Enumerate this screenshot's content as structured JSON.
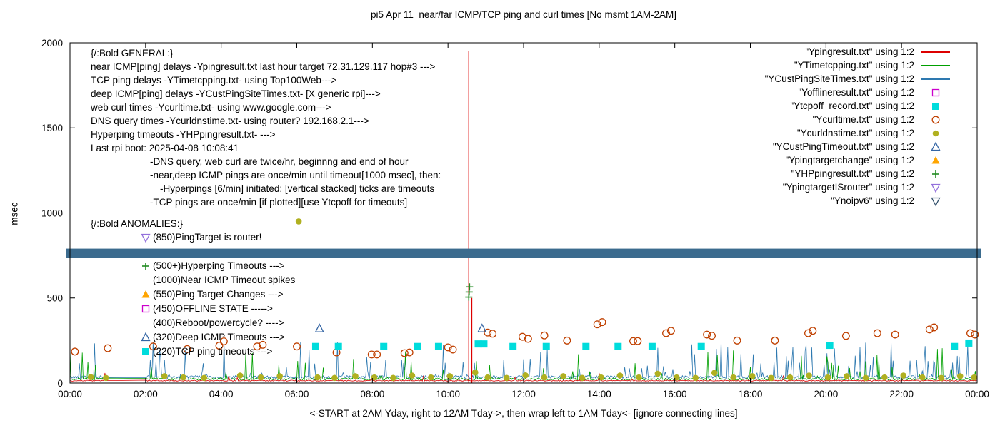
{
  "chart_data": {
    "type": "line",
    "title": "pi5 Apr 11  near/far ICMP/TCP ping and curl times [No msmt 1AM-2AM]",
    "xlabel": "<-START at 2AM Yday, right to 12AM Tday->, then wrap left to 1AM Tday<- [ignore connecting lines]",
    "ylabel": "msec",
    "xlim_hours": [
      0,
      24
    ],
    "ylim": [
      0,
      2000
    ],
    "x_ticks": [
      "00:00",
      "02:00",
      "04:00",
      "06:00",
      "08:00",
      "10:00",
      "12:00",
      "14:00",
      "16:00",
      "18:00",
      "20:00",
      "22:00",
      "00:00"
    ],
    "y_ticks": [
      0,
      500,
      1000,
      1500,
      2000
    ],
    "grid": false,
    "legend_position": "top-right",
    "gap_hours": [
      1,
      2
    ],
    "legend": [
      {
        "key": "Ypingresult",
        "label": "\"Ypingresult.txt\" using 1:2",
        "marker": "line",
        "color": "#dd0000"
      },
      {
        "key": "YTimetcpping",
        "label": "\"YTimetcpping.txt\" using 1:2",
        "marker": "line",
        "color": "#00a000"
      },
      {
        "key": "YCustPingSiteTimes",
        "label": "\"YCustPingSiteTimes.txt\" using 1:2",
        "marker": "line",
        "color": "#2e79b0"
      },
      {
        "key": "Yofflineresult",
        "label": "\"Yofflineresult.txt\" using 1:2",
        "marker": "square-open",
        "color": "#cc00cc"
      },
      {
        "key": "Ytcpoff_record",
        "label": "\"Ytcpoff_record.txt\" using 1:2",
        "marker": "square-filled",
        "color": "#00dcdc"
      },
      {
        "key": "Ycurltime",
        "label": "\"Ycurltime.txt\" using 1:2",
        "marker": "circle-open",
        "color": "#c04000"
      },
      {
        "key": "Ycurldnstime",
        "label": "\"Ycurldnstime.txt\" using 1:2",
        "marker": "circle-filled",
        "color": "#b0b020"
      },
      {
        "key": "YCustPingTimeout",
        "label": "\"YCustPingTimeout.txt\" using 1:2",
        "marker": "triangle-up-open",
        "color": "#3465a4"
      },
      {
        "key": "Ypingtargetchange",
        "label": "\"Ypingtargetchange\" using 1:2",
        "marker": "triangle-up-filled",
        "color": "#ffa500"
      },
      {
        "key": "YHPpingresult",
        "label": "\"YHPpingresult.txt\" using 1:2",
        "marker": "plus",
        "color": "#228b22"
      },
      {
        "key": "YpingtargetISrouter",
        "label": "\"YpingtargetISrouter\" using 1:2",
        "marker": "triangle-down-open",
        "color": "#9370db"
      },
      {
        "key": "Ynoipv6",
        "label": "\"Ynoipv6\" using 1:2",
        "marker": "triangle-down-open",
        "color": "#2e4d69"
      }
    ],
    "noise_series": [
      {
        "name": "YCustPingSiteTimes",
        "color": "#2e79b0",
        "base": 26,
        "jitter": 18,
        "spike_prob": 0.17,
        "spike_max": 240,
        "seed": 42
      },
      {
        "name": "YTimetcpping",
        "color": "#00a000",
        "base": 17,
        "jitter": 12,
        "spike_prob": 0.09,
        "spike_max": 200,
        "seed": 7
      },
      {
        "name": "Ypingresult",
        "color": "#dd0000",
        "base": 11,
        "jitter": 6,
        "spike_prob": 0.015,
        "spike_max": 55,
        "seed": 99
      }
    ],
    "red_spikes": [
      [
        10.55,
        1950
      ],
      [
        10.63,
        500
      ]
    ],
    "band": {
      "from": 735,
      "to": 790,
      "color": "#3b6b8e",
      "name": "Ynoipv6 stacked markers"
    },
    "scatter": [
      {
        "name": "Ycurltime",
        "marker": "circle-open",
        "color": "#c04000",
        "points": [
          [
            0.13,
            185
          ],
          [
            1.0,
            205
          ],
          [
            2.2,
            215
          ],
          [
            3.1,
            200
          ],
          [
            3.95,
            220
          ],
          [
            4.07,
            245
          ],
          [
            4.95,
            215
          ],
          [
            5.1,
            225
          ],
          [
            6.0,
            215
          ],
          [
            7.05,
            180
          ],
          [
            7.98,
            168
          ],
          [
            8.12,
            168
          ],
          [
            8.85,
            176
          ],
          [
            8.98,
            180
          ],
          [
            10.0,
            210
          ],
          [
            10.13,
            197
          ],
          [
            11.05,
            297
          ],
          [
            11.18,
            290
          ],
          [
            11.97,
            272
          ],
          [
            12.12,
            260
          ],
          [
            12.55,
            280
          ],
          [
            13.15,
            250
          ],
          [
            13.95,
            345
          ],
          [
            14.08,
            358
          ],
          [
            14.9,
            247
          ],
          [
            15.02,
            247
          ],
          [
            15.77,
            293
          ],
          [
            15.9,
            307
          ],
          [
            16.85,
            285
          ],
          [
            16.98,
            278
          ],
          [
            17.65,
            250
          ],
          [
            18.65,
            250
          ],
          [
            19.53,
            293
          ],
          [
            19.65,
            307
          ],
          [
            20.53,
            277
          ],
          [
            21.36,
            293
          ],
          [
            21.83,
            285
          ],
          [
            22.74,
            315
          ],
          [
            22.86,
            327
          ],
          [
            23.82,
            293
          ],
          [
            23.94,
            285
          ]
        ]
      },
      {
        "name": "Ycurldnstime",
        "marker": "circle-filled",
        "color": "#b0b020",
        "points": [
          [
            0.55,
            35
          ],
          [
            0.95,
            30
          ],
          [
            2.5,
            40
          ],
          [
            3.0,
            33
          ],
          [
            3.55,
            30
          ],
          [
            4.5,
            44
          ],
          [
            5.05,
            33
          ],
          [
            5.55,
            40
          ],
          [
            6.05,
            950
          ],
          [
            6.55,
            33
          ],
          [
            7.0,
            30
          ],
          [
            7.55,
            40
          ],
          [
            8.05,
            33
          ],
          [
            8.55,
            30
          ],
          [
            9.05,
            44
          ],
          [
            9.55,
            33
          ],
          [
            10.05,
            40
          ],
          [
            10.72,
            62
          ],
          [
            11.05,
            33
          ],
          [
            11.55,
            30
          ],
          [
            12.05,
            45
          ],
          [
            12.55,
            33
          ],
          [
            13.05,
            40
          ],
          [
            13.55,
            30
          ],
          [
            14.05,
            33
          ],
          [
            14.55,
            44
          ],
          [
            15.05,
            33
          ],
          [
            15.55,
            55
          ],
          [
            16.05,
            33
          ],
          [
            16.55,
            30
          ],
          [
            17.05,
            60
          ],
          [
            17.55,
            33
          ],
          [
            18.05,
            40
          ],
          [
            18.55,
            30
          ],
          [
            19.05,
            33
          ],
          [
            19.55,
            44
          ],
          [
            20.05,
            33
          ],
          [
            20.55,
            40
          ],
          [
            21.05,
            30
          ],
          [
            21.55,
            33
          ],
          [
            22.05,
            44
          ],
          [
            22.55,
            33
          ],
          [
            23.05,
            30
          ],
          [
            23.55,
            40
          ],
          [
            23.92,
            33
          ]
        ]
      },
      {
        "name": "Ytcpoff_record",
        "marker": "square-filled",
        "color": "#00dcdc",
        "points": [
          [
            6.5,
            215
          ],
          [
            7.1,
            215
          ],
          [
            8.3,
            215
          ],
          [
            9.2,
            215
          ],
          [
            9.75,
            215
          ],
          [
            10.8,
            230
          ],
          [
            10.95,
            230
          ],
          [
            11.72,
            215
          ],
          [
            12.6,
            215
          ],
          [
            13.65,
            215
          ],
          [
            14.5,
            215
          ],
          [
            15.4,
            215
          ],
          [
            16.7,
            215
          ],
          [
            20.1,
            222
          ],
          [
            23.4,
            215
          ],
          [
            23.78,
            235
          ]
        ]
      },
      {
        "name": "YCustPingTimeout",
        "marker": "triangle-up-open",
        "color": "#3465a4",
        "points": [
          [
            6.6,
            320
          ],
          [
            10.9,
            320
          ]
        ]
      },
      {
        "name": "YHPpingresult",
        "marker": "plus",
        "color": "#228b22",
        "points": [
          [
            10.55,
            505
          ],
          [
            10.56,
            535
          ],
          [
            10.57,
            565
          ]
        ]
      }
    ],
    "annotations": {
      "general": [
        {
          "indent": 0,
          "text": "{/:Bold GENERAL:}"
        },
        {
          "indent": 0,
          "text": "near ICMP[ping] delays -Ypingresult.txt last hour target 72.31.129.117 hop#3 --->"
        },
        {
          "indent": 0,
          "text": "TCP ping delays -YTimetcpping.txt- using Top100Web--->"
        },
        {
          "indent": 0,
          "text": "deep ICMP[ping] delays -YCustPingSiteTimes.txt- [X generic rpi]--->"
        },
        {
          "indent": 0,
          "text": "web curl times -Ycurltime.txt- using www.google.com--->"
        },
        {
          "indent": 0,
          "text": "DNS query times -Ycurldnstime.txt- using router? 192.168.2.1--->"
        },
        {
          "indent": 0,
          "text": "Hyperping timeouts -YHPpingresult.txt- --->"
        },
        {
          "indent": 0,
          "text": "Last rpi boot: 2025-04-08 10:08:41"
        },
        {
          "indent": 1,
          "text": "-DNS query, web curl are twice/hr, beginnng and end of hour"
        },
        {
          "indent": 1,
          "text": "-near,deep ICMP pings are once/min until timeout[1000 msec], then:"
        },
        {
          "indent": 2,
          "text": "-Hyperpings [6/min] initiated; [vertical stacked] ticks are timeouts"
        },
        {
          "indent": 1,
          "text": "-TCP pings are once/min [if plotted][use Ytcpoff for timeouts]"
        }
      ],
      "anomalies_header": "{/:Bold ANOMALIES:}",
      "anomalies": [
        {
          "marker": "triangle-down-open",
          "color": "#9370db",
          "text": "(850)PingTarget is router!"
        },
        {
          "marker": null,
          "color": null,
          "text": ""
        },
        {
          "marker": "plus",
          "color": "#228b22",
          "text": "(500+)Hyperping Timeouts --->"
        },
        {
          "marker": null,
          "color": null,
          "text": "(1000)Near ICMP Timeout spikes"
        },
        {
          "marker": "triangle-up-filled",
          "color": "#ffa500",
          "text": "(550)Ping Target Changes --->"
        },
        {
          "marker": "square-open",
          "color": "#cc00cc",
          "text": "(450)OFFLINE STATE ----->"
        },
        {
          "marker": null,
          "color": null,
          "text": "(400)Reboot/powercycle? ---->"
        },
        {
          "marker": "triangle-up-open",
          "color": "#3465a4",
          "text": "(320)Deep ICMP Timeouts --->"
        },
        {
          "marker": "square-filled",
          "color": "#00dcdc",
          "text": "(220)TCP ping timeouts --->"
        }
      ]
    }
  }
}
